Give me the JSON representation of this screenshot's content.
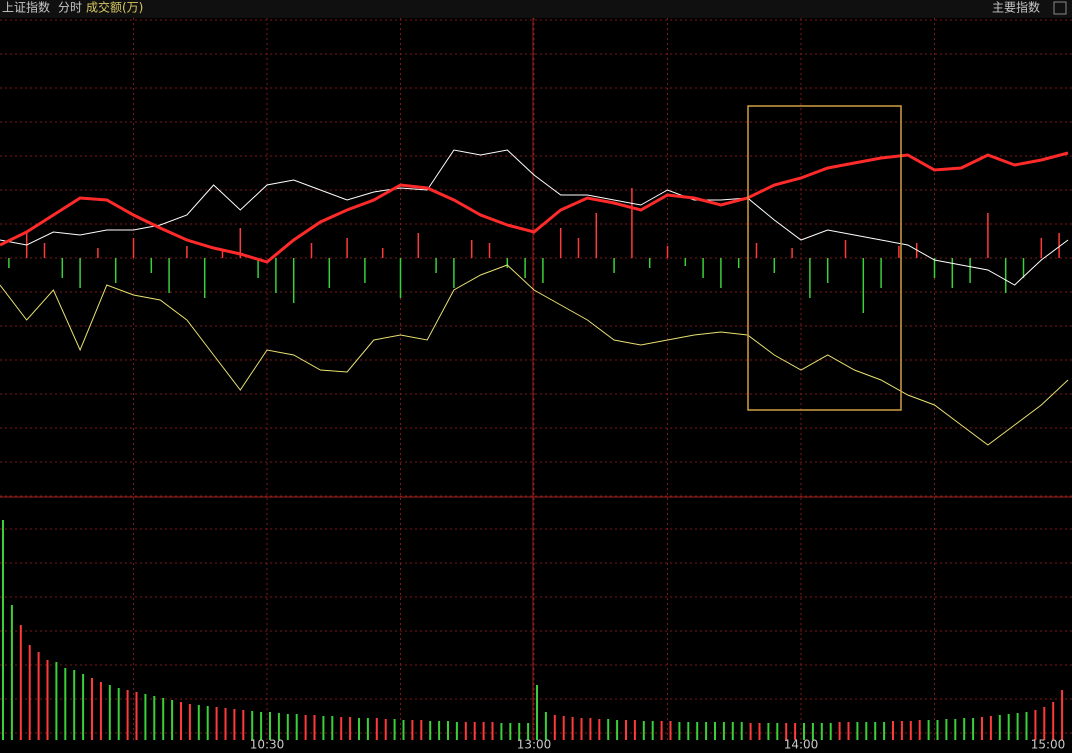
{
  "header": {
    "title": "上证指数",
    "mode": "分时",
    "indicator": "成交额(万)",
    "menu": "主要指数"
  },
  "x_labels": [
    "10:30",
    "13:00",
    "14:00",
    "15:00"
  ],
  "main_panel": {
    "index_line": {
      "color": "#ff2a2a",
      "values": [
        13,
        26,
        43,
        60,
        58,
        43,
        30,
        18,
        10,
        4,
        -4,
        18,
        36,
        48,
        58,
        73,
        70,
        58,
        43,
        33,
        26,
        48,
        60,
        55,
        48,
        63,
        60,
        53,
        60,
        73,
        80,
        90,
        95,
        100,
        103,
        88,
        90,
        103,
        93,
        98,
        105
      ]
    },
    "white_line": {
      "color": "#ffffff",
      "values": [
        18,
        13,
        26,
        23,
        28,
        28,
        33,
        43,
        73,
        48,
        73,
        78,
        68,
        58,
        66,
        70,
        68,
        108,
        103,
        108,
        83,
        63,
        63,
        58,
        53,
        68,
        58,
        58,
        60,
        38,
        18,
        28,
        23,
        18,
        13,
        -2,
        -7,
        -12,
        -27,
        -2,
        18
      ]
    },
    "yellow_line": {
      "color": "#e8e070",
      "values": [
        -27,
        -62,
        -32,
        -92,
        -27,
        -37,
        -42,
        -62,
        -97,
        -132,
        -92,
        -97,
        -112,
        -114,
        -82,
        -77,
        -82,
        -32,
        -17,
        -7,
        -32,
        -47,
        -62,
        -82,
        -87,
        -82,
        -77,
        -74,
        -77,
        -97,
        -112,
        -97,
        -112,
        -122,
        -137,
        -147,
        -167,
        -187,
        -167,
        -147,
        -122
      ]
    },
    "breadth_bars": {
      "up_color": "#ff3a3a",
      "down_color": "#3ad03a",
      "values": [
        -10,
        25,
        15,
        -20,
        -30,
        10,
        -25,
        20,
        -15,
        -35,
        12,
        -40,
        8,
        30,
        -20,
        -35,
        -45,
        15,
        -30,
        20,
        -25,
        10,
        -40,
        25,
        -15,
        -30,
        18,
        15,
        -10,
        -20,
        -25,
        30,
        20,
        45,
        -15,
        70,
        -10,
        12,
        -8,
        -20,
        -30,
        -10,
        15,
        -15,
        10,
        -40,
        -25,
        18,
        -55,
        -30,
        12,
        15,
        -20,
        -30,
        -25,
        45,
        -35,
        -20,
        20,
        25
      ]
    }
  },
  "volume_panel": {
    "values": [
      220,
      135,
      115,
      95,
      88,
      80,
      78,
      72,
      70,
      66,
      62,
      58,
      55,
      52,
      50,
      48,
      46,
      44,
      42,
      40,
      38,
      36,
      35,
      34,
      33,
      32,
      31,
      30,
      29,
      28,
      28,
      27,
      26,
      26,
      25,
      25,
      24,
      24,
      23,
      23,
      22,
      22,
      22,
      21,
      21,
      20,
      20,
      20,
      19,
      19,
      19,
      18,
      18,
      18,
      18,
      18,
      17,
      17,
      17,
      17,
      55,
      28,
      25,
      24,
      23,
      22,
      22,
      21,
      21,
      20,
      20,
      20,
      19,
      19,
      19,
      19,
      18,
      18,
      18,
      18,
      18,
      18,
      18,
      18,
      17,
      17,
      17,
      17,
      17,
      17,
      17,
      17,
      17,
      17,
      18,
      18,
      18,
      18,
      18,
      18,
      19,
      19,
      19,
      20,
      20,
      20,
      21,
      21,
      22,
      22,
      23,
      24,
      25,
      26,
      27,
      28,
      30,
      33,
      38,
      50
    ]
  }
}
